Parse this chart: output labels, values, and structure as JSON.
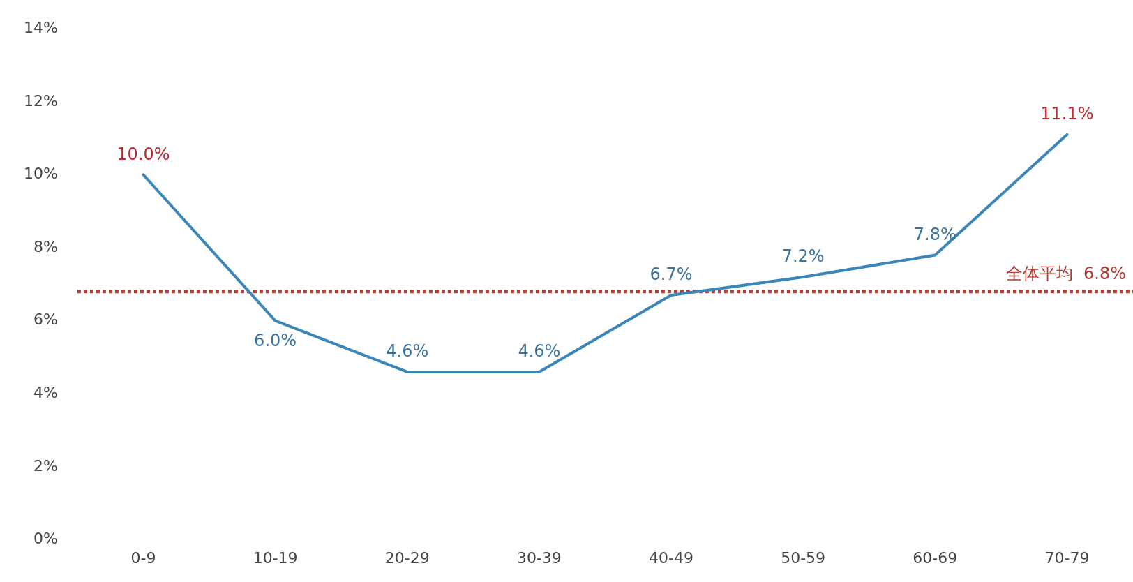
{
  "chart_data": {
    "type": "line",
    "categories": [
      "0-9",
      "10-19",
      "20-29",
      "30-39",
      "40-49",
      "50-59",
      "60-69",
      "70-79"
    ],
    "series": [
      {
        "color": "#3a86b8",
        "values": [
          10.0,
          6.0,
          4.6,
          4.6,
          6.7,
          7.2,
          7.8,
          11.1
        ],
        "value_labels": [
          "10.0%",
          "6.0%",
          "4.6%",
          "4.6%",
          "6.7%",
          "7.2%",
          "7.8%",
          "11.1%"
        ],
        "colors": [
          "#c0282f",
          "#3a73a0",
          "#3a73a0",
          "#3a73a0",
          "#3a73a0",
          "#3a73a0",
          "#3a73a0",
          "#c0282f"
        ]
      }
    ],
    "ylim": [
      0,
      14
    ],
    "yticks": [
      {
        "value": 0,
        "label": "0%"
      },
      {
        "value": 2,
        "label": "2%"
      },
      {
        "value": 4,
        "label": "4%"
      },
      {
        "value": 6,
        "label": "6%"
      },
      {
        "value": 8,
        "label": "8%"
      },
      {
        "value": 10,
        "label": "10%"
      },
      {
        "value": 12,
        "label": "12%"
      },
      {
        "value": 14,
        "label": "14%"
      }
    ],
    "ref_lines": [
      {
        "axis": "y",
        "value": 6.8,
        "label": "全体平均  6.8%",
        "color": "#b03a32",
        "line_style": "dotted"
      }
    ],
    "grid": false,
    "legend": false,
    "marker": "none",
    "line_style": "solid"
  }
}
